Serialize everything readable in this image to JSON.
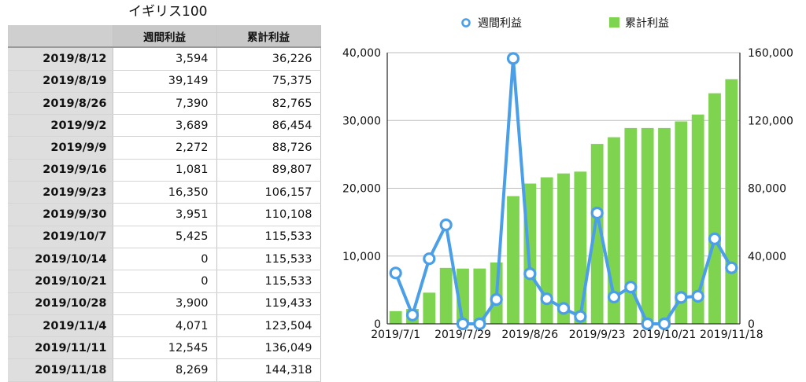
{
  "table": {
    "title": "イギリス100",
    "headers": [
      "",
      "週間利益",
      "累計利益"
    ],
    "rows": [
      [
        "2019/8/12",
        "3,594",
        "36,226"
      ],
      [
        "2019/8/19",
        "39,149",
        "75,375"
      ],
      [
        "2019/8/26",
        "7,390",
        "82,765"
      ],
      [
        "2019/9/2",
        "3,689",
        "86,454"
      ],
      [
        "2019/9/9",
        "2,272",
        "88,726"
      ],
      [
        "2019/9/16",
        "1,081",
        "89,807"
      ],
      [
        "2019/9/23",
        "16,350",
        "106,157"
      ],
      [
        "2019/9/30",
        "3,951",
        "110,108"
      ],
      [
        "2019/10/7",
        "5,425",
        "115,533"
      ],
      [
        "2019/10/14",
        "0",
        "115,533"
      ],
      [
        "2019/10/21",
        "0",
        "115,533"
      ],
      [
        "2019/10/28",
        "3,900",
        "119,433"
      ],
      [
        "2019/11/4",
        "4,071",
        "123,504"
      ],
      [
        "2019/11/11",
        "12,545",
        "136,049"
      ],
      [
        "2019/11/18",
        "8,269",
        "144,318"
      ]
    ]
  },
  "chart_data": {
    "type": "bar",
    "title": "",
    "legend_position": "top",
    "grid": true,
    "categories": [
      "2019/7/1",
      "2019/7/8",
      "2019/7/15",
      "2019/7/22",
      "2019/7/29",
      "2019/8/5",
      "2019/8/12",
      "2019/8/19",
      "2019/8/26",
      "2019/9/2",
      "2019/9/9",
      "2019/9/16",
      "2019/9/23",
      "2019/9/30",
      "2019/10/7",
      "2019/10/14",
      "2019/10/21",
      "2019/10/28",
      "2019/11/4",
      "2019/11/11",
      "2019/11/18"
    ],
    "x_tick_labels": [
      "2019/7/1",
      "2019/7/29",
      "2019/8/26",
      "2019/9/23",
      "2019/10/21",
      "2019/11/18"
    ],
    "series": [
      {
        "name": "週間利益",
        "kind": "line",
        "axis": "left",
        "color": "#4a9fe8",
        "values": [
          7500,
          1300,
          9600,
          14600,
          0,
          0,
          3594,
          39149,
          7390,
          3689,
          2272,
          1081,
          16350,
          3951,
          5425,
          0,
          0,
          3900,
          4071,
          12545,
          8269
        ]
      },
      {
        "name": "累計利益",
        "kind": "bar",
        "axis": "right",
        "color": "#7ed34f",
        "values": [
          7500,
          8800,
          18400,
          33000,
          32600,
          32632,
          36226,
          75375,
          82765,
          86454,
          88726,
          89807,
          106157,
          110108,
          115533,
          115533,
          115533,
          119433,
          123504,
          136049,
          144318
        ]
      }
    ],
    "y_left": {
      "lim": [
        0,
        40000
      ],
      "ticks": [
        "0",
        "10,000",
        "20,000",
        "30,000",
        "40,000"
      ]
    },
    "y_right": {
      "lim": [
        0,
        160000
      ],
      "ticks": [
        "0",
        "40,000",
        "80,000",
        "120,000",
        "160,000"
      ]
    }
  }
}
